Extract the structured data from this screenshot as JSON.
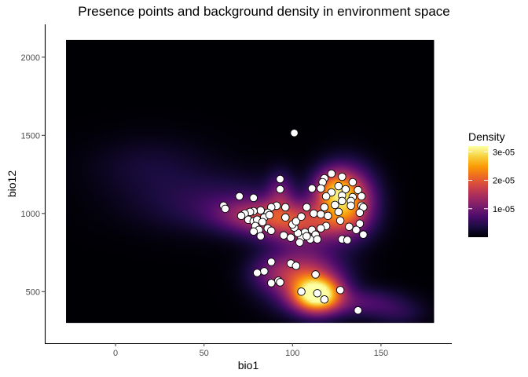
{
  "chart_data": {
    "type": "scatter",
    "overlay": "heatmap",
    "title": "Presence points and background density in environment space",
    "xlabel": "bio1",
    "ylabel": "bio12",
    "xlim": [
      -40,
      190
    ],
    "ylim": [
      170,
      2210
    ],
    "x_ticks": [
      0,
      50,
      100,
      150
    ],
    "y_ticks": [
      500,
      1000,
      1500,
      2000
    ],
    "grid": false,
    "background_extent": {
      "x": [
        -28,
        180
      ],
      "y": [
        300,
        2110
      ]
    },
    "colors": {
      "background_fill": "#000004",
      "point_fill": "#ffffff",
      "point_stroke": "#000000",
      "axis": "#000000",
      "colormap": [
        "#000004",
        "#1b0c41",
        "#4a0c6b",
        "#781c6d",
        "#a52c60",
        "#cf4446",
        "#ed6925",
        "#fb9b06",
        "#f7d13d",
        "#fcffa4"
      ]
    },
    "density_components": [
      {
        "x": 114,
        "y": 480,
        "sx": 9,
        "sy": 75,
        "w": 1.0
      },
      {
        "x": 106,
        "y": 600,
        "sx": 14,
        "sy": 120,
        "w": 0.45
      },
      {
        "x": 130,
        "y": 1080,
        "sx": 10,
        "sy": 130,
        "w": 0.75
      },
      {
        "x": 123,
        "y": 1160,
        "sx": 7,
        "sy": 80,
        "w": 0.35
      },
      {
        "x": 104,
        "y": 940,
        "sx": 17,
        "sy": 90,
        "w": 0.45
      },
      {
        "x": 78,
        "y": 990,
        "sx": 15,
        "sy": 70,
        "w": 0.28
      },
      {
        "x": 93,
        "y": 1130,
        "sx": 5,
        "sy": 90,
        "w": 0.2
      },
      {
        "x": 58,
        "y": 1070,
        "sx": 30,
        "sy": 120,
        "w": 0.12
      },
      {
        "x": 20,
        "y": 1300,
        "sx": 22,
        "sy": 120,
        "w": 0.06
      },
      {
        "x": 140,
        "y": 430,
        "sx": 15,
        "sy": 60,
        "w": 0.17
      },
      {
        "x": 160,
        "y": 360,
        "sx": 10,
        "sy": 55,
        "w": 0.08
      },
      {
        "x": 88,
        "y": 620,
        "sx": 9,
        "sy": 70,
        "w": 0.12
      }
    ],
    "points": [
      {
        "x": 101,
        "y": 1515
      },
      {
        "x": 93,
        "y": 1220
      },
      {
        "x": 93,
        "y": 1155
      },
      {
        "x": 122,
        "y": 1255
      },
      {
        "x": 128,
        "y": 1235
      },
      {
        "x": 118,
        "y": 1225
      },
      {
        "x": 117,
        "y": 1200
      },
      {
        "x": 134,
        "y": 1200
      },
      {
        "x": 116,
        "y": 1160
      },
      {
        "x": 111,
        "y": 1160
      },
      {
        "x": 126,
        "y": 1175
      },
      {
        "x": 130,
        "y": 1155
      },
      {
        "x": 137,
        "y": 1150
      },
      {
        "x": 122,
        "y": 1135
      },
      {
        "x": 128,
        "y": 1115
      },
      {
        "x": 134,
        "y": 1105
      },
      {
        "x": 119,
        "y": 1110
      },
      {
        "x": 139,
        "y": 1110
      },
      {
        "x": 128,
        "y": 1080
      },
      {
        "x": 133,
        "y": 1080
      },
      {
        "x": 124,
        "y": 1055
      },
      {
        "x": 139,
        "y": 1050
      },
      {
        "x": 118,
        "y": 1040
      },
      {
        "x": 133,
        "y": 1050
      },
      {
        "x": 140,
        "y": 1040
      },
      {
        "x": 126,
        "y": 1010
      },
      {
        "x": 138,
        "y": 1005
      },
      {
        "x": 108,
        "y": 1040
      },
      {
        "x": 112,
        "y": 1000
      },
      {
        "x": 116,
        "y": 995
      },
      {
        "x": 120,
        "y": 985
      },
      {
        "x": 127,
        "y": 955
      },
      {
        "x": 138,
        "y": 935
      },
      {
        "x": 119,
        "y": 920
      },
      {
        "x": 132,
        "y": 915
      },
      {
        "x": 136,
        "y": 895
      },
      {
        "x": 140,
        "y": 865
      },
      {
        "x": 128,
        "y": 835
      },
      {
        "x": 131,
        "y": 830
      },
      {
        "x": 116,
        "y": 905
      },
      {
        "x": 111,
        "y": 895
      },
      {
        "x": 107,
        "y": 880
      },
      {
        "x": 113,
        "y": 865
      },
      {
        "x": 110,
        "y": 835
      },
      {
        "x": 114,
        "y": 835
      },
      {
        "x": 105,
        "y": 845
      },
      {
        "x": 104,
        "y": 815
      },
      {
        "x": 108,
        "y": 855
      },
      {
        "x": 99,
        "y": 845
      },
      {
        "x": 103,
        "y": 875
      },
      {
        "x": 101,
        "y": 910
      },
      {
        "x": 100,
        "y": 930
      },
      {
        "x": 102,
        "y": 950
      },
      {
        "x": 105,
        "y": 980
      },
      {
        "x": 96,
        "y": 975
      },
      {
        "x": 95,
        "y": 860
      },
      {
        "x": 91,
        "y": 1050
      },
      {
        "x": 96,
        "y": 1040
      },
      {
        "x": 88,
        "y": 1040
      },
      {
        "x": 86,
        "y": 1005
      },
      {
        "x": 82,
        "y": 1020
      },
      {
        "x": 78,
        "y": 1015
      },
      {
        "x": 76,
        "y": 1010
      },
      {
        "x": 73,
        "y": 1000
      },
      {
        "x": 71,
        "y": 985
      },
      {
        "x": 75,
        "y": 960
      },
      {
        "x": 78,
        "y": 950
      },
      {
        "x": 80,
        "y": 960
      },
      {
        "x": 84,
        "y": 975
      },
      {
        "x": 87,
        "y": 990
      },
      {
        "x": 83,
        "y": 945
      },
      {
        "x": 79,
        "y": 920
      },
      {
        "x": 81,
        "y": 895
      },
      {
        "x": 78,
        "y": 885
      },
      {
        "x": 82,
        "y": 855
      },
      {
        "x": 86,
        "y": 905
      },
      {
        "x": 88,
        "y": 890
      },
      {
        "x": 61,
        "y": 1050
      },
      {
        "x": 62,
        "y": 1030
      },
      {
        "x": 70,
        "y": 1110
      },
      {
        "x": 78,
        "y": 1100
      },
      {
        "x": 88,
        "y": 690
      },
      {
        "x": 99,
        "y": 680
      },
      {
        "x": 102,
        "y": 665
      },
      {
        "x": 84,
        "y": 630
      },
      {
        "x": 80,
        "y": 620
      },
      {
        "x": 92,
        "y": 570
      },
      {
        "x": 88,
        "y": 555
      },
      {
        "x": 93,
        "y": 560
      },
      {
        "x": 113,
        "y": 610
      },
      {
        "x": 105,
        "y": 500
      },
      {
        "x": 114,
        "y": 490
      },
      {
        "x": 118,
        "y": 450
      },
      {
        "x": 127,
        "y": 510
      },
      {
        "x": 137,
        "y": 380
      }
    ],
    "legend": {
      "title": "Density",
      "labels": [
        "3e-05",
        "2e-05",
        "1e-05"
      ],
      "values": [
        3e-05,
        2e-05,
        1e-05
      ],
      "range": [
        0,
        3.2e-05
      ],
      "placement": "right"
    }
  }
}
